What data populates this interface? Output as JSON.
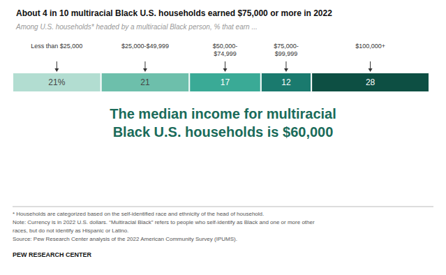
{
  "chart_data": {
    "type": "bar",
    "orientation": "horizontal",
    "stacked": true,
    "title": "About 4 in 10 multiracial Black U.S. households earned $75,000 or more in 2022",
    "subtitle": "Among U.S. households* headed by a multiracial Black person, % that earn ...",
    "series": [
      {
        "name": "Less than $25,000",
        "color": "#b2ddd1",
        "values": [
          21
        ],
        "value_labels": [
          "21%"
        ]
      },
      {
        "name": "$25,000-$49,999",
        "color": "#6dbfab",
        "values": [
          21
        ],
        "value_labels": [
          "21"
        ]
      },
      {
        "name": "$50,000-\n$74,999",
        "color": "#3aaa96",
        "values": [
          17
        ],
        "value_labels": [
          "17"
        ]
      },
      {
        "name": "$75,000-\n$99,999",
        "color": "#1a7a6e",
        "values": [
          12
        ],
        "value_labels": [
          "12"
        ]
      },
      {
        "name": "$100,000+",
        "color": "#0d4f43",
        "values": [
          28
        ],
        "value_labels": [
          "28"
        ]
      }
    ],
    "xlim": [
      0,
      100
    ],
    "data_labels": true,
    "tick_labels": false,
    "grid": false,
    "annotations": [
      {
        "text": "The median income for multiracial\nBlack U.S. households is $60,000",
        "color": "#1a6b5a"
      }
    ],
    "footnotes": [
      "* Households are categorized based on the self-identified race and ethnicity of the head of household.",
      "Note: Currency is in 2022 U.S. dollars. “Multiracial Black” refers to people who self-identify as Black and one or more other",
      "races, but do not identify as Hispanic or Latino.",
      "Source: Pew Research Center analysis of the 2022 American Community Survey (IPUMS)."
    ],
    "brand": "PEW RESEARCH CENTER"
  }
}
